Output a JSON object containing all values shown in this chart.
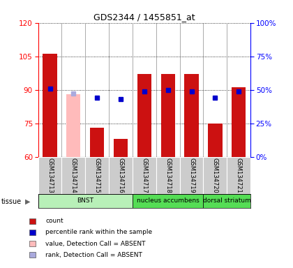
{
  "title": "GDS2344 / 1455851_at",
  "samples": [
    "GSM134713",
    "GSM134714",
    "GSM134715",
    "GSM134716",
    "GSM134717",
    "GSM134718",
    "GSM134719",
    "GSM134720",
    "GSM134721"
  ],
  "count_values": [
    106,
    null,
    73,
    68,
    97,
    97,
    97,
    75,
    91
  ],
  "count_absent": [
    null,
    88,
    null,
    null,
    null,
    null,
    null,
    null,
    null
  ],
  "rank_values": [
    51,
    null,
    44,
    43,
    49,
    50,
    49,
    44,
    49
  ],
  "rank_absent": [
    null,
    47,
    null,
    null,
    null,
    null,
    null,
    null,
    null
  ],
  "ylim_left": [
    60,
    120
  ],
  "ylim_right": [
    0,
    100
  ],
  "yticks_left": [
    60,
    75,
    90,
    105,
    120
  ],
  "yticks_right": [
    0,
    25,
    50,
    75,
    100
  ],
  "yticklabels_right": [
    "0%",
    "25%",
    "50%",
    "75%",
    "100%"
  ],
  "tissues": [
    {
      "label": "BNST",
      "start": 0,
      "end": 4,
      "color": "#b8f0b8"
    },
    {
      "label": "nucleus accumbens",
      "start": 4,
      "end": 7,
      "color": "#66dd66"
    },
    {
      "label": "dorsal striatum",
      "start": 7,
      "end": 9,
      "color": "#66dd66"
    }
  ],
  "tissue_label": "tissue",
  "bar_color_red": "#cc1111",
  "bar_color_pink": "#ffbbbb",
  "marker_color_blue": "#0000cc",
  "marker_color_lightblue": "#aaaadd",
  "bar_width": 0.6,
  "legend_items": [
    {
      "color": "#cc1111",
      "label": "count"
    },
    {
      "color": "#0000cc",
      "label": "percentile rank within the sample"
    },
    {
      "color": "#ffbbbb",
      "label": "value, Detection Call = ABSENT"
    },
    {
      "color": "#aaaadd",
      "label": "rank, Detection Call = ABSENT"
    }
  ]
}
